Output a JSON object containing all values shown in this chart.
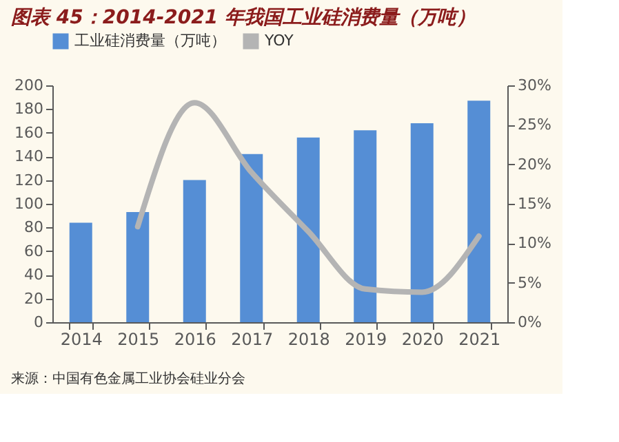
{
  "chart_data": {
    "type": "bar",
    "title": "图表 45：2014-2021 年我国工业硅消费量（万吨）",
    "categories": [
      "2014",
      "2015",
      "2016",
      "2017",
      "2018",
      "2019",
      "2020",
      "2021"
    ],
    "series": [
      {
        "name": "工业硅消费量（万吨）",
        "color": "#558ed5",
        "values": [
          84,
          93,
          120,
          142,
          156,
          162,
          168,
          187
        ]
      },
      {
        "name": "YOY",
        "type": "line",
        "axis": "y2",
        "color": "#b4b4b4",
        "values": [
          null,
          12.1,
          27.8,
          19,
          11.5,
          4.2,
          3.8,
          10.9
        ]
      }
    ],
    "ylim": [
      0,
      200
    ],
    "yticks": [
      0,
      20,
      40,
      60,
      80,
      100,
      120,
      140,
      160,
      180,
      200
    ],
    "y2lim": [
      0,
      30
    ],
    "y2ticks": [
      {
        "value": 0,
        "label": "0%"
      },
      {
        "value": 5,
        "label": "5%"
      },
      {
        "value": 10,
        "label": "10%"
      },
      {
        "value": 15,
        "label": "15%"
      },
      {
        "value": 20,
        "label": "20%"
      },
      {
        "value": 25,
        "label": "25%"
      },
      {
        "value": 30,
        "label": "30%"
      }
    ],
    "legend": "top",
    "grid": false,
    "annotations": [
      "来源：中国有色金属工业协会硅业分会"
    ]
  }
}
